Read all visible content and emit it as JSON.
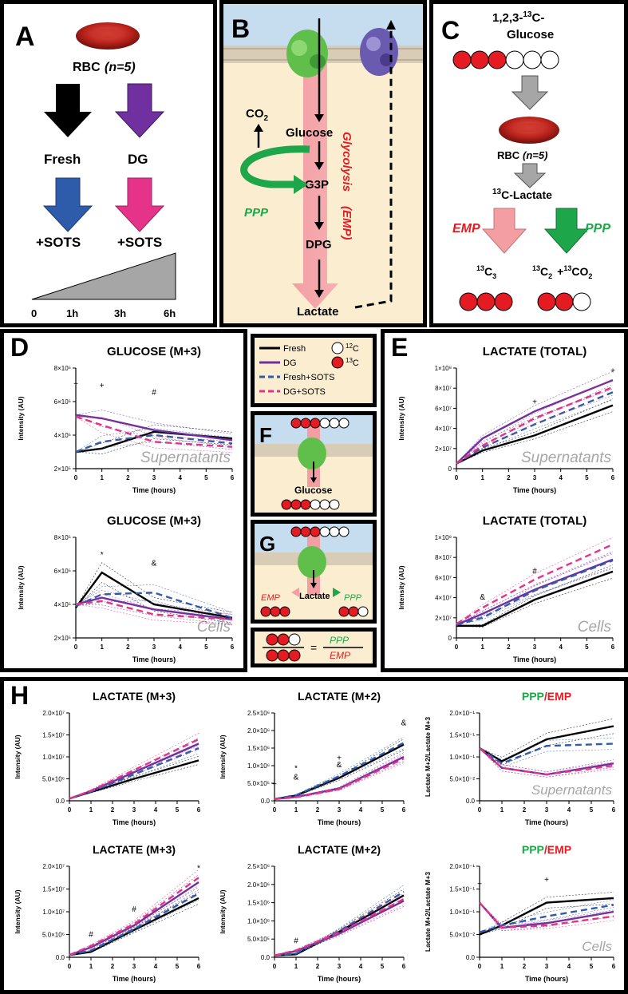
{
  "colors": {
    "fresh": "#000000",
    "dg": "#7030a0",
    "fresh_sots": "#2e5caa",
    "dg_sots": "#e6338a",
    "red": "#e51b24",
    "green": "#1ea64a",
    "grey_text": "#a6a6a6",
    "cream": "#fbeed0",
    "sky": "#c6dcef"
  },
  "panelA": {
    "letter": "A",
    "rbc_label": "RBC",
    "rbc_n": "(n=5)",
    "fresh": "Fresh",
    "dg": "DG",
    "sots1": "+SOTS",
    "sots2": "+SOTS",
    "times": [
      "0",
      "1h",
      "3h",
      "6h"
    ]
  },
  "panelB": {
    "letter": "B",
    "co2": "CO",
    "co2_sub": "2",
    "glucose": "Glucose",
    "g3p": "G3P",
    "dpg": "DPG",
    "lactate": "Lactate",
    "ppp": "PPP",
    "glycolysis": "Glycolysis",
    "emp": "(EMP)"
  },
  "panelC": {
    "letter": "C",
    "tracer_line1": "1,2,3-",
    "tracer_sup": "13",
    "tracer_line1b": "C-",
    "tracer_line2": "Glucose",
    "rbc_label": "RBC",
    "rbc_n": "(n=5)",
    "lactate_sup": "13",
    "lactate_label": "C-Lactate",
    "emp": "EMP",
    "ppp": "PPP",
    "c3_sup": "13",
    "c3": "C",
    "c3_sub": "3",
    "c2_sup": "13",
    "c2": "C",
    "c2_sub": "2",
    "co2_plus": "+",
    "co2_sup": "13",
    "co2": "CO",
    "co2_sub": "2"
  },
  "legend": {
    "fresh": "Fresh",
    "dg": "DG",
    "fresh_sots": "Fresh+SOTS",
    "dg_sots": "DG+SOTS",
    "c12_sup": "12",
    "c12": "C",
    "c13_sup": "13",
    "c13": "C"
  },
  "panelF": {
    "letter": "F",
    "glucose": "Glucose"
  },
  "panelG": {
    "letter": "G",
    "lactate": "Lactate",
    "emp": "EMP",
    "ppp": "PPP"
  },
  "ratio": {
    "ppp": "PPP",
    "emp": "EMP",
    "eq": "="
  },
  "panelD": {
    "letter": "D"
  },
  "panelE": {
    "letter": "E"
  },
  "panelH": {
    "letter": "H"
  },
  "chart_data": [
    {
      "id": "d1",
      "type": "line",
      "title": "GLUCOSE (M+3)",
      "ylabel": "Intensity (AU)",
      "xlabel": "Time (hours)",
      "watermark": "Supernatants",
      "x": [
        0,
        1,
        3,
        6
      ],
      "ylim": [
        200000,
        800000
      ],
      "yticks": [
        200000,
        400000,
        600000,
        800000
      ],
      "ytick_labels": [
        "2×10⁵",
        "4×10⁵",
        "6×10⁵",
        "8×10⁵"
      ],
      "xticks": [
        0,
        1,
        2,
        3,
        4,
        5,
        6
      ],
      "series": [
        {
          "name": "Fresh",
          "values": [
            300000,
            320000,
            420000,
            380000
          ]
        },
        {
          "name": "DG",
          "values": [
            520000,
            500000,
            430000,
            370000
          ]
        },
        {
          "name": "Fresh+SOTS",
          "values": [
            300000,
            360000,
            400000,
            350000
          ]
        },
        {
          "name": "DG+SOTS",
          "values": [
            510000,
            460000,
            360000,
            330000
          ]
        }
      ],
      "annotations": [
        {
          "text": "+",
          "x": 0,
          "y": 690000
        },
        {
          "text": "+",
          "x": 1,
          "y": 680000
        },
        {
          "text": "#",
          "x": 3,
          "y": 640000
        }
      ]
    },
    {
      "id": "d2",
      "type": "line",
      "title": "GLUCOSE (M+3)",
      "ylabel": "Intensity (AU)",
      "xlabel": "Time (hours)",
      "watermark": "Cells",
      "x": [
        0,
        1,
        3,
        6
      ],
      "ylim": [
        200000,
        800000
      ],
      "yticks": [
        200000,
        400000,
        600000,
        800000
      ],
      "ytick_labels": [
        "2×10⁵",
        "4×10⁵",
        "6×10⁵",
        "8×10⁵"
      ],
      "xticks": [
        0,
        1,
        2,
        3,
        4,
        5,
        6
      ],
      "series": [
        {
          "name": "Fresh",
          "values": [
            380000,
            590000,
            400000,
            320000
          ]
        },
        {
          "name": "DG",
          "values": [
            400000,
            440000,
            370000,
            310000
          ]
        },
        {
          "name": "Fresh+SOTS",
          "values": [
            390000,
            460000,
            470000,
            320000
          ]
        },
        {
          "name": "DG+SOTS",
          "values": [
            400000,
            420000,
            340000,
            310000
          ]
        }
      ],
      "annotations": [
        {
          "text": "*",
          "x": 1,
          "y": 680000
        },
        {
          "text": "&",
          "x": 3,
          "y": 630000
        }
      ]
    },
    {
      "id": "e1",
      "type": "line",
      "title": "LACTATE (TOTAL)",
      "ylabel": "Intensity (AU)",
      "xlabel": "Time (hours)",
      "watermark": "Supernatants",
      "x": [
        0,
        1,
        3,
        6
      ],
      "ylim": [
        0,
        100000000
      ],
      "yticks": [
        0,
        20000000,
        40000000,
        60000000,
        80000000,
        100000000
      ],
      "ytick_labels": [
        "0",
        "2×10⁷",
        "4×10⁷",
        "6×10⁷",
        "8×10⁷",
        "1×10⁸"
      ],
      "xticks": [
        0,
        1,
        2,
        3,
        4,
        5,
        6
      ],
      "series": [
        {
          "name": "Fresh",
          "values": [
            5000000,
            18000000,
            33000000,
            63000000
          ]
        },
        {
          "name": "DG",
          "values": [
            5000000,
            30000000,
            57000000,
            88000000
          ]
        },
        {
          "name": "Fresh+SOTS",
          "values": [
            5000000,
            21000000,
            44000000,
            76000000
          ]
        },
        {
          "name": "DG+SOTS",
          "values": [
            5000000,
            23000000,
            50000000,
            81000000
          ]
        }
      ],
      "annotations": [
        {
          "text": "+",
          "x": 3,
          "y": 64000000
        },
        {
          "text": "+",
          "x": 6,
          "y": 95000000
        }
      ]
    },
    {
      "id": "e2",
      "type": "line",
      "title": "LACTATE (TOTAL)",
      "ylabel": "Intensity (AU)",
      "xlabel": "Time (hours)",
      "watermark": "Cells",
      "x": [
        0,
        1,
        3,
        6
      ],
      "ylim": [
        0,
        100000000
      ],
      "yticks": [
        0,
        20000000,
        40000000,
        60000000,
        80000000,
        100000000
      ],
      "ytick_labels": [
        "0",
        "2×10⁷",
        "4×10⁷",
        "6×10⁷",
        "8×10⁷",
        "1×10⁸"
      ],
      "xticks": [
        0,
        1,
        2,
        3,
        4,
        5,
        6
      ],
      "series": [
        {
          "name": "Fresh",
          "values": [
            12000000,
            12000000,
            38000000,
            66000000
          ]
        },
        {
          "name": "DG",
          "values": [
            13000000,
            24000000,
            48000000,
            78000000
          ]
        },
        {
          "name": "Fresh+SOTS",
          "values": [
            13000000,
            20000000,
            47000000,
            77000000
          ]
        },
        {
          "name": "DG+SOTS",
          "values": [
            14000000,
            30000000,
            58000000,
            93000000
          ]
        }
      ],
      "annotations": [
        {
          "text": "&",
          "x": 1,
          "y": 38000000
        },
        {
          "text": "#",
          "x": 3,
          "y": 64000000
        }
      ]
    },
    {
      "id": "h1",
      "type": "line",
      "title": "LACTATE (M+3)",
      "ylabel": "Intensity (AU)",
      "xlabel": "Time (hours)",
      "watermark": "",
      "x": [
        0,
        1,
        3,
        6
      ],
      "ylim": [
        0,
        20000000
      ],
      "yticks": [
        0,
        5000000,
        10000000,
        15000000,
        20000000
      ],
      "ytick_labels": [
        "0.0",
        "5.0×10⁶",
        "1.0×10⁷",
        "1.5×10⁷",
        "2.0×10⁷"
      ],
      "xticks": [
        0,
        1,
        2,
        3,
        4,
        5,
        6
      ],
      "series": [
        {
          "name": "Fresh",
          "values": [
            500000,
            2000000,
            5000000,
            9200000
          ]
        },
        {
          "name": "DG",
          "values": [
            500000,
            2200000,
            6500000,
            13000000
          ]
        },
        {
          "name": "Fresh+SOTS",
          "values": [
            500000,
            2100000,
            6000000,
            12000000
          ]
        },
        {
          "name": "DG+SOTS",
          "values": [
            500000,
            2300000,
            7000000,
            14000000
          ]
        }
      ],
      "annotations": []
    },
    {
      "id": "h2",
      "type": "line",
      "title": "LACTATE (M+2)",
      "ylabel": "Intensity (AU)",
      "xlabel": "Time (hours)",
      "watermark": "",
      "x": [
        0,
        1,
        3,
        6
      ],
      "ylim": [
        0,
        2500000
      ],
      "yticks": [
        0,
        500000,
        1000000,
        1500000,
        2000000,
        2500000
      ],
      "ytick_labels": [
        "0.0",
        "5.0×10⁵",
        "1.0×10⁶",
        "1.5×10⁶",
        "2.0×10⁶",
        "2.5×10⁶"
      ],
      "xticks": [
        0,
        1,
        2,
        3,
        4,
        5,
        6
      ],
      "series": [
        {
          "name": "Fresh",
          "values": [
            50000,
            150000,
            650000,
            1600000
          ]
        },
        {
          "name": "DG",
          "values": [
            50000,
            110000,
            350000,
            1250000
          ]
        },
        {
          "name": "Fresh+SOTS",
          "values": [
            50000,
            160000,
            700000,
            1650000
          ]
        },
        {
          "name": "DG+SOTS",
          "values": [
            50000,
            100000,
            330000,
            1200000
          ]
        }
      ],
      "annotations": [
        {
          "text": "+",
          "x": 0,
          "y": 400000
        },
        {
          "text": "*",
          "x": 1,
          "y": 850000
        },
        {
          "text": "&",
          "x": 1,
          "y": 600000
        },
        {
          "text": "+",
          "x": 3,
          "y": 1150000
        },
        {
          "text": "&",
          "x": 3,
          "y": 950000
        },
        {
          "text": "&",
          "x": 6,
          "y": 2150000
        }
      ]
    },
    {
      "id": "h3",
      "type": "line",
      "title": "PPP/EMP",
      "ylabel": "Lactate M+2/Lactate M+3",
      "xlabel": "Time (hours)",
      "watermark": "Supernatants",
      "x": [
        0,
        1,
        3,
        6
      ],
      "ylim": [
        0,
        0.2
      ],
      "yticks": [
        0,
        0.05,
        0.1,
        0.15,
        0.2
      ],
      "ytick_labels": [
        "0.0",
        "5.0×10⁻²",
        "1.0×10⁻¹",
        "1.5×10⁻¹",
        "2.0×10⁻¹"
      ],
      "xticks": [
        0,
        1,
        2,
        3,
        4,
        5,
        6
      ],
      "series": [
        {
          "name": "Fresh",
          "values": [
            0.12,
            0.09,
            0.14,
            0.17
          ]
        },
        {
          "name": "DG",
          "values": [
            0.12,
            0.075,
            0.06,
            0.085
          ]
        },
        {
          "name": "Fresh+SOTS",
          "values": [
            0.12,
            0.085,
            0.125,
            0.13
          ]
        },
        {
          "name": "DG+SOTS",
          "values": [
            0.12,
            0.075,
            0.06,
            0.08
          ]
        }
      ],
      "annotations": []
    },
    {
      "id": "h4",
      "type": "line",
      "title": "LACTATE (M+3)",
      "ylabel": "Intensity (AU)",
      "xlabel": "Time (hours)",
      "watermark": "",
      "x": [
        0,
        1,
        3,
        6
      ],
      "ylim": [
        0,
        20000000
      ],
      "yticks": [
        0,
        5000000,
        10000000,
        15000000,
        20000000
      ],
      "ytick_labels": [
        "0.0",
        "5.0×10⁶",
        "1.0×10⁷",
        "1.5×10⁷",
        "2.0×10⁷"
      ],
      "xticks": [
        0,
        1,
        2,
        3,
        4,
        5,
        6
      ],
      "series": [
        {
          "name": "Fresh",
          "values": [
            500000,
            1200000,
            6000000,
            13000000
          ]
        },
        {
          "name": "DG",
          "values": [
            500000,
            2200000,
            7000000,
            16500000
          ]
        },
        {
          "name": "Fresh+SOTS",
          "values": [
            500000,
            1500000,
            6200000,
            14000000
          ]
        },
        {
          "name": "DG+SOTS",
          "values": [
            500000,
            2500000,
            7300000,
            17500000
          ]
        }
      ],
      "annotations": [
        {
          "text": "#",
          "x": 1,
          "y": 4500000
        },
        {
          "text": "#",
          "x": 3,
          "y": 10000000
        },
        {
          "text": "*",
          "x": 6,
          "y": 19000000
        }
      ]
    },
    {
      "id": "h5",
      "type": "line",
      "title": "LACTATE (M+2)",
      "ylabel": "Intensity (AU)",
      "xlabel": "Time (hours)",
      "watermark": "",
      "x": [
        0,
        1,
        3,
        6
      ],
      "ylim": [
        0,
        2500000
      ],
      "yticks": [
        0,
        500000,
        1000000,
        1500000,
        2000000,
        2500000
      ],
      "ytick_labels": [
        "0.0",
        "5.0×10⁵",
        "1.0×10⁶",
        "1.5×10⁶",
        "2.0×10⁶",
        "2.5×10⁶"
      ],
      "xticks": [
        0,
        1,
        2,
        3,
        4,
        5,
        6
      ],
      "series": [
        {
          "name": "Fresh",
          "values": [
            50000,
            80000,
            700000,
            1700000
          ]
        },
        {
          "name": "DG",
          "values": [
            50000,
            170000,
            650000,
            1550000
          ]
        },
        {
          "name": "Fresh+SOTS",
          "values": [
            50000,
            100000,
            720000,
            1800000
          ]
        },
        {
          "name": "DG+SOTS",
          "values": [
            50000,
            190000,
            680000,
            1600000
          ]
        }
      ],
      "annotations": [
        {
          "text": "#",
          "x": 1,
          "y": 380000
        }
      ]
    },
    {
      "id": "h6",
      "type": "line",
      "title": "PPP/EMP",
      "ylabel": "Lactate M+2/Lactate M+3",
      "xlabel": "Time (hours)",
      "watermark": "Cells",
      "x": [
        0,
        1,
        3,
        6
      ],
      "ylim": [
        0,
        0.2
      ],
      "yticks": [
        0,
        0.05,
        0.1,
        0.15,
        0.2
      ],
      "ytick_labels": [
        "0.0",
        "5.0×10⁻²",
        "1.0×10⁻¹",
        "1.5×10⁻¹",
        "2.0×10⁻¹"
      ],
      "xticks": [
        0,
        1,
        2,
        3,
        4,
        5,
        6
      ],
      "series": [
        {
          "name": "Fresh",
          "values": [
            0.05,
            0.07,
            0.12,
            0.13
          ]
        },
        {
          "name": "DG",
          "values": [
            0.12,
            0.065,
            0.075,
            0.1
          ]
        },
        {
          "name": "Fresh+SOTS",
          "values": [
            0.055,
            0.07,
            0.09,
            0.115
          ]
        },
        {
          "name": "DG+SOTS",
          "values": [
            0.12,
            0.065,
            0.07,
            0.09
          ]
        }
      ],
      "annotations": [
        {
          "text": "+",
          "x": 0,
          "y": 0.155
        },
        {
          "text": "+",
          "x": 3,
          "y": 0.165
        }
      ]
    }
  ]
}
